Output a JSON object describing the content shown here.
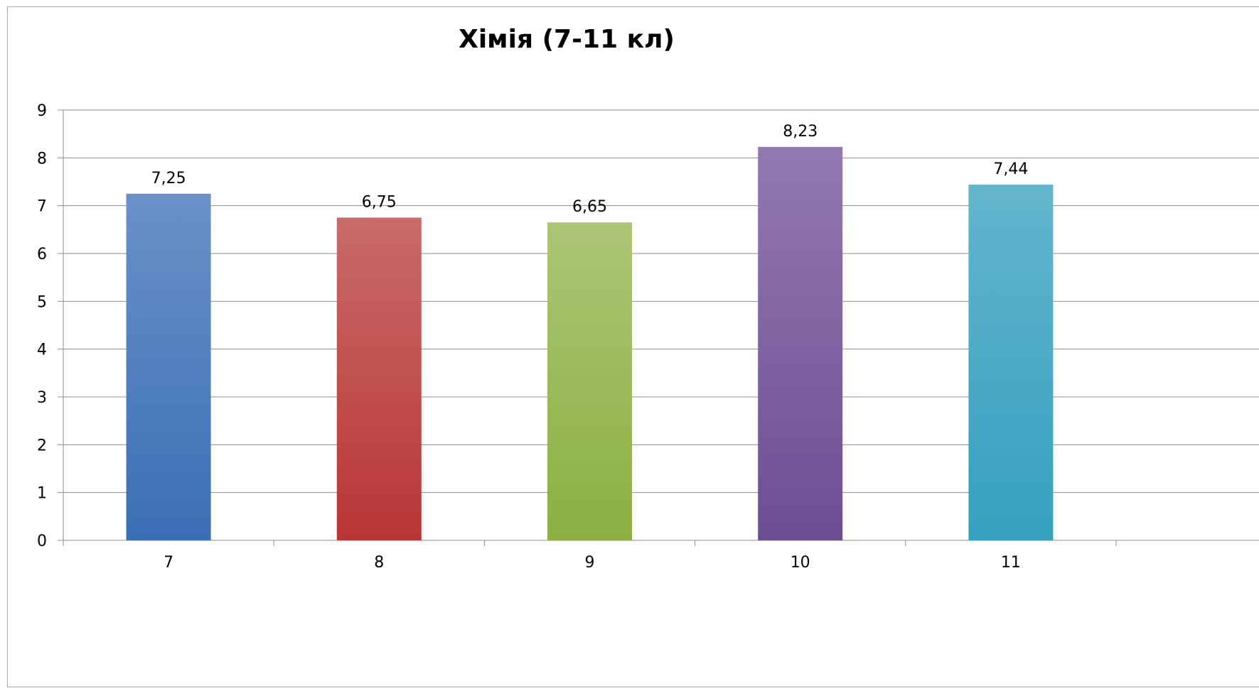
{
  "chart_data": {
    "type": "bar",
    "title": "Хімія (7-11 кл)",
    "categories": [
      "7",
      "8",
      "9",
      "10",
      "11"
    ],
    "values": [
      7.25,
      6.75,
      6.65,
      8.23,
      7.44
    ],
    "value_labels": [
      "7,25",
      "6,75",
      "6,65",
      "8,23",
      "7,44"
    ],
    "ylim": [
      0,
      9
    ],
    "yticks": [
      0,
      1,
      2,
      3,
      4,
      5,
      6,
      7,
      8,
      9
    ],
    "ytick_labels": [
      "0",
      "1",
      "2",
      "3",
      "4",
      "5",
      "6",
      "7",
      "8",
      "9"
    ],
    "grid": true,
    "legend": "none",
    "colors": [
      [
        "#6a91c8",
        "#3a6fb5"
      ],
      [
        "#c96b6a",
        "#b83635"
      ],
      [
        "#acc576",
        "#8bb041"
      ],
      [
        "#9279b0",
        "#6f4d94"
      ],
      [
        "#63b5cd",
        "#35a0bf"
      ]
    ],
    "xlabel": "",
    "ylabel": ""
  }
}
